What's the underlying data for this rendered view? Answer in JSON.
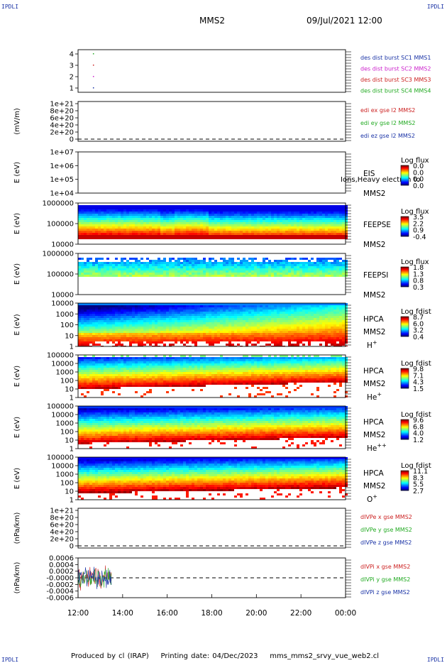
{
  "corners": {
    "tl": "IPDLI",
    "tr": "IPDLI",
    "bl": "IPDLI",
    "br": "IPDLI"
  },
  "header": {
    "spacecraft": "MMS2",
    "datetime": "09/Jul/2021 12:00"
  },
  "footer": {
    "produced": "Produced by cl (IRAP)",
    "printed": "Printing date: 04/Dec/2023",
    "script": "mms_mms2_srvy_vue_web2.cl"
  },
  "x_ticks": [
    "12:00",
    "14:00",
    "16:00",
    "18:00",
    "20:00",
    "22:00",
    "00:00"
  ],
  "chart_data": [
    {
      "type": "scatter",
      "panel": "burst",
      "yticks": [
        "4",
        "3",
        "2",
        "1"
      ],
      "series": [
        {
          "name": "des dist burst SC1 MMS1",
          "color": "#1a33a6",
          "x": [
            "12:40"
          ],
          "y": [
            1
          ]
        },
        {
          "name": "des dist burst SC2 MMS2",
          "color": "#cc22cc",
          "x": [
            "12:40"
          ],
          "y": [
            2
          ]
        },
        {
          "name": "des dist burst SC3 MMS3",
          "color": "#cc2222",
          "x": [
            "12:40"
          ],
          "y": [
            3
          ]
        },
        {
          "name": "des dist burst SC4 MMS4",
          "color": "#22aa22",
          "x": [
            "12:40"
          ],
          "y": [
            4
          ]
        }
      ]
    },
    {
      "type": "line",
      "panel": "edi",
      "ylabel": "(mV/m)",
      "yticks": [
        "1e+21",
        "8e+20",
        "6e+20",
        "4e+20",
        "2e+20",
        "0"
      ],
      "series": [
        {
          "name": "edi ex gse l2 MMS2",
          "color": "#cc2222"
        },
        {
          "name": "edi ey gse l2 MMS2",
          "color": "#22aa22"
        },
        {
          "name": "edi ez gse l2 MMS2",
          "color": "#1a33a6"
        }
      ]
    },
    {
      "type": "heatmap",
      "panel": "eis",
      "ylabel": "E (eV)",
      "yticks": [
        "1e+07",
        "1e+06",
        "1e+05",
        "1e+04"
      ],
      "instrument": "EIS",
      "spacecraft": "MMS2",
      "overlay_text": "Ions,Heavy electron to",
      "cbar_title": "Log flux",
      "cbar_ticks": [
        "0.0",
        "0.0",
        "0.0",
        "0.0"
      ],
      "profile": "empty"
    },
    {
      "type": "heatmap",
      "panel": "feepse",
      "ylabel": "E (eV)",
      "yticks": [
        "1000000",
        "100000",
        "10000"
      ],
      "instrument": "FEEPSE",
      "spacecraft": "MMS2",
      "cbar_title": "Log flux",
      "cbar_ticks": [
        "3.5",
        "2.2",
        "0.9",
        "-0.4"
      ],
      "profile": "feepse"
    },
    {
      "type": "heatmap",
      "panel": "feepsi",
      "ylabel": "E (eV)",
      "yticks": [
        "1000000",
        "100000",
        "10000"
      ],
      "instrument": "FEEPSI",
      "spacecraft": "MMS2",
      "cbar_title": "Log flux",
      "cbar_ticks": [
        "1.8",
        "1.3",
        "0.8",
        "0.3"
      ],
      "profile": "feepsi"
    },
    {
      "type": "heatmap",
      "panel": "hpca_h",
      "ylabel": "E (eV)",
      "yticks": [
        "10000",
        "1000",
        "100",
        "10",
        "1"
      ],
      "instrument": "HPCA",
      "spacecraft": "MMS2",
      "species": "H",
      "charge": "+",
      "cbar_title": "Log fdist",
      "cbar_ticks": [
        "8.7",
        "6.0",
        "3.2",
        "0.4"
      ],
      "profile": "hplus"
    },
    {
      "type": "heatmap",
      "panel": "hpca_he",
      "ylabel": "E (eV)",
      "yticks": [
        "100000",
        "10000",
        "1000",
        "100",
        "10",
        "1"
      ],
      "instrument": "HPCA",
      "spacecraft": "MMS2",
      "species": "He",
      "charge": "+",
      "cbar_title": "Log fdist",
      "cbar_ticks": [
        "9.8",
        "7.1",
        "4.3",
        "1.5"
      ],
      "profile": "heplus"
    },
    {
      "type": "heatmap",
      "panel": "hpca_hepp",
      "ylabel": "E (eV)",
      "yticks": [
        "100000",
        "10000",
        "1000",
        "100",
        "10",
        "1"
      ],
      "instrument": "HPCA",
      "spacecraft": "MMS2",
      "species": "He",
      "charge": "++",
      "cbar_title": "Log fdist",
      "cbar_ticks": [
        "9.6",
        "6.8",
        "4.0",
        "1.2"
      ],
      "profile": "hepp"
    },
    {
      "type": "heatmap",
      "panel": "hpca_o",
      "ylabel": "E (eV)",
      "yticks": [
        "100000",
        "10000",
        "1000",
        "100",
        "10",
        "1"
      ],
      "instrument": "HPCA",
      "spacecraft": "MMS2",
      "species": "O",
      "charge": "+",
      "cbar_title": "Log fdist",
      "cbar_ticks": [
        "11.1",
        "8.3",
        "5.5",
        "2.7"
      ],
      "profile": "oplus"
    },
    {
      "type": "line",
      "panel": "divpe",
      "ylabel": "(nPa/km)",
      "yticks": [
        "1e+21",
        "8e+20",
        "6e+20",
        "4e+20",
        "2e+20",
        "0"
      ],
      "series": [
        {
          "name": "dIVPe x gse MMS2",
          "color": "#cc2222"
        },
        {
          "name": "dIVPe y gse MMS2",
          "color": "#22aa22"
        },
        {
          "name": "dIVPe z gse MMS2",
          "color": "#1a33a6"
        }
      ]
    },
    {
      "type": "line",
      "panel": "divpi",
      "ylabel": "(nPa/km)",
      "yticks": [
        "0.0006",
        "0.0004",
        "0.0002",
        "-0.0000",
        "-0.0002",
        "-0.0004",
        "-0.0006"
      ],
      "ylim": [
        -0.0006,
        0.0006
      ],
      "series": [
        {
          "name": "dIVPi x gse MMS2",
          "color": "#cc2222",
          "x_range": [
            "12:00",
            "13:30"
          ],
          "amplitude": 0.0004
        },
        {
          "name": "dIVPi y gse MMS2",
          "color": "#22aa22",
          "x_range": [
            "12:00",
            "13:30"
          ],
          "amplitude": 0.0004
        },
        {
          "name": "dIVPi z gse MMS2",
          "color": "#1a33a6",
          "x_range": [
            "12:00",
            "13:30"
          ],
          "amplitude": 0.0004
        }
      ]
    }
  ]
}
